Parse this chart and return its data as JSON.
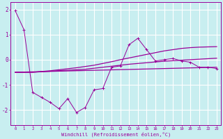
{
  "background_color": "#c8eef0",
  "grid_color": "#ffffff",
  "line_color": "#990099",
  "xlabel": "Windchill (Refroidissement éolien,°C)",
  "ylim": [
    -2.6,
    2.3
  ],
  "xlim": [
    -0.5,
    23.5
  ],
  "yticks": [
    -2,
    -1,
    0,
    1,
    2
  ],
  "x_ticks": [
    0,
    1,
    2,
    3,
    4,
    5,
    6,
    7,
    8,
    9,
    10,
    11,
    12,
    13,
    14,
    15,
    16,
    17,
    18,
    19,
    20,
    21,
    22,
    23
  ],
  "line1_x": [
    0,
    1,
    2,
    3,
    4,
    5,
    6,
    7,
    8,
    9,
    10,
    11,
    12,
    13,
    14,
    15,
    16,
    17,
    18,
    19,
    20,
    21,
    22,
    23
  ],
  "line1_y": [
    1.95,
    1.2,
    -1.3,
    -1.5,
    -1.7,
    -1.95,
    -1.55,
    -2.1,
    -1.9,
    -1.2,
    -1.15,
    -0.3,
    -0.25,
    0.6,
    0.85,
    0.4,
    -0.05,
    0.0,
    0.05,
    -0.05,
    -0.1,
    -0.3,
    -0.3,
    -0.35
  ],
  "line2_x": [
    0,
    1,
    2,
    3,
    4,
    5,
    6,
    7,
    8,
    9,
    10,
    11,
    12,
    13,
    14,
    15,
    16,
    17,
    18,
    19,
    20,
    21,
    22,
    23
  ],
  "line2_y": [
    -0.5,
    -0.5,
    -0.5,
    -0.48,
    -0.46,
    -0.44,
    -0.42,
    -0.4,
    -0.38,
    -0.34,
    -0.3,
    -0.26,
    -0.22,
    -0.18,
    -0.15,
    -0.12,
    -0.09,
    -0.06,
    -0.04,
    -0.02,
    0.0,
    0.02,
    0.04,
    0.06
  ],
  "line3_x": [
    0,
    1,
    2,
    3,
    4,
    5,
    6,
    7,
    8,
    9,
    10,
    11,
    12,
    13,
    14,
    15,
    16,
    17,
    18,
    19,
    20,
    21,
    22,
    23
  ],
  "line3_y": [
    -0.5,
    -0.5,
    -0.5,
    -0.47,
    -0.44,
    -0.4,
    -0.36,
    -0.32,
    -0.27,
    -0.22,
    -0.15,
    -0.08,
    -0.0,
    0.07,
    0.14,
    0.21,
    0.28,
    0.35,
    0.4,
    0.45,
    0.48,
    0.5,
    0.51,
    0.52
  ],
  "line4_x": [
    0,
    23
  ],
  "line4_y": [
    -0.5,
    -0.3
  ]
}
